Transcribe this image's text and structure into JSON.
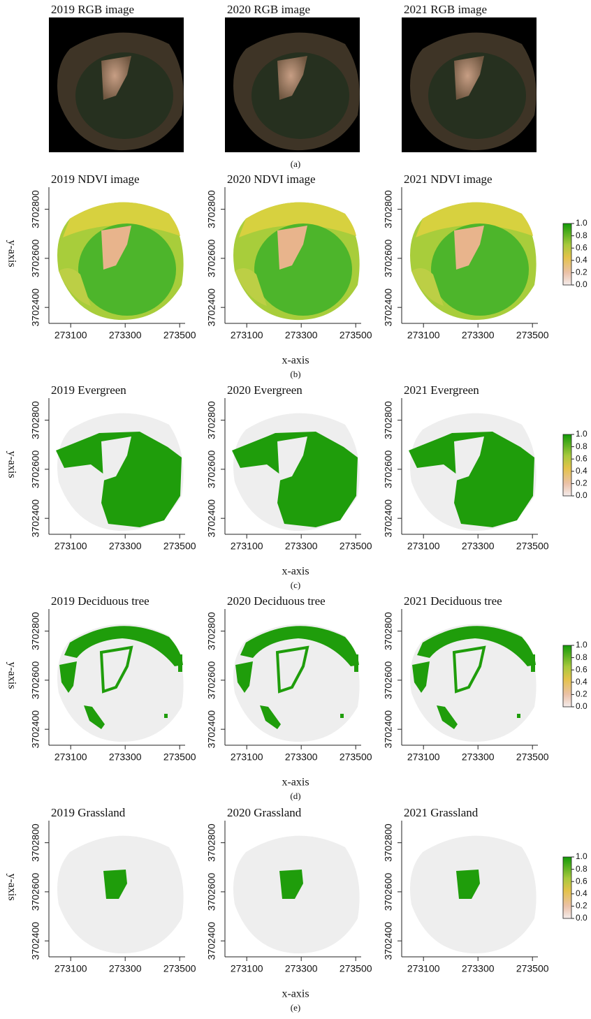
{
  "figure": {
    "axes": {
      "xlabel": "x-axis",
      "ylabel": "y-axis",
      "xlim": [
        273020,
        273520
      ],
      "xticks": [
        273100,
        273300,
        273500
      ],
      "ylim": [
        3702335,
        3702890
      ],
      "yticks": [
        3702400,
        3702600,
        3702800
      ],
      "colorbar": {
        "lim": [
          0,
          1
        ],
        "ticks": [
          {
            "value": 0,
            "label": "0.0"
          },
          {
            "value": 0.2,
            "label": "0.2"
          },
          {
            "value": 0.4,
            "label": "0.4"
          },
          {
            "value": 0.6,
            "label": "0.6"
          },
          {
            "value": 0.8,
            "label": "0.8"
          },
          {
            "value": 1,
            "label": "1.0"
          }
        ]
      }
    },
    "rows": [
      {
        "label": "(a)",
        "titles": [
          "2019 RGB image",
          "2020 RGB image",
          "2021 RGB image"
        ]
      },
      {
        "label": "(b)",
        "titles": [
          "2019 NDVI image",
          "2020 NDVI image",
          "2021 NDVI image"
        ]
      },
      {
        "label": "(c)",
        "titles": [
          "2019 Evergreen",
          "2020 Evergreen",
          "2021 Evergreen"
        ]
      },
      {
        "label": "(d)",
        "titles": [
          "2019 Deciduous tree",
          "2020 Deciduous tree",
          "2021 Deciduous tree"
        ]
      },
      {
        "label": "(e)",
        "titles": [
          "2019 Grassland",
          "2020 Grassland",
          "2021 Grassland"
        ]
      }
    ]
  }
}
